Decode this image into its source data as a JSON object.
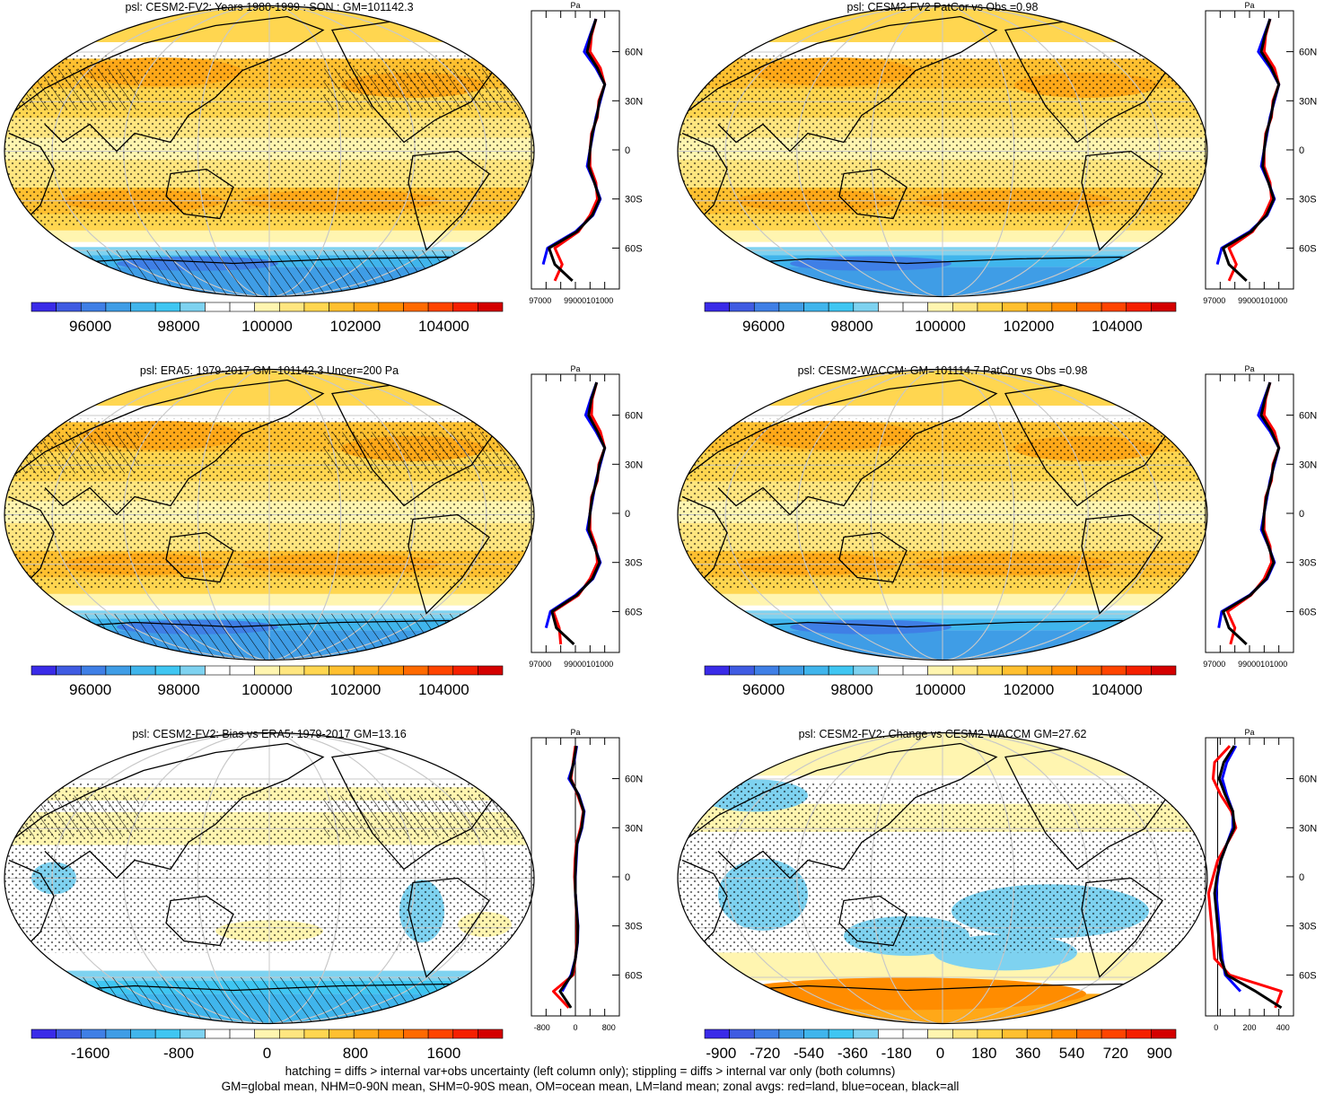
{
  "figure": {
    "footer_line1": "hatching = diffs > internal var+obs uncertainty (left column only); stippling = diffs > internal var only (both columns)",
    "footer_line2": "GM=global mean, NHM=0-90N mean, SHM=0-90S mean, OM=ocean mean, LM=land mean; zonal avgs: red=land, blue=ocean, black=all",
    "zonal_lat_labels": [
      "60N",
      "30N",
      "0",
      "30S",
      "60S"
    ],
    "zonal_units": "Pa",
    "colors": {
      "land": "#ff0000",
      "ocean": "#0000ff",
      "all": "#000000",
      "abs_palette": [
        "#3a2be8",
        "#3f5be2",
        "#3f7fe6",
        "#3f9de6",
        "#40b5ec",
        "#3fc6f2",
        "#7ed2f0",
        "#ffffff",
        "#ffffff",
        "#fff5b0",
        "#ffe680",
        "#ffd650",
        "#ffc030",
        "#ffa818",
        "#ff8c00",
        "#ff6a00",
        "#ff4400",
        "#f52000",
        "#d40000"
      ],
      "diff_palette": [
        "#3a2be8",
        "#3f5be2",
        "#3f7fe6",
        "#3f9de6",
        "#40b5ec",
        "#3fc6f2",
        "#7ed2f0",
        "#ffffff",
        "#ffffff",
        "#fff5b0",
        "#ffe680",
        "#ffd650",
        "#ffc030",
        "#ffa818",
        "#ff8c00",
        "#ff6a00",
        "#ff4400",
        "#f52000",
        "#d40000"
      ]
    }
  },
  "chart_data": [
    {
      "type": "heatmap",
      "title": "psl: CESM2-FV2: Years 1980-1999 : SON : GM=101142.3",
      "colorbar_labels": [
        "96000",
        "98000",
        "100000",
        "102000",
        "104000"
      ],
      "zonal": {
        "type": "line",
        "xticks": [
          "97000",
          "99000101000"
        ],
        "xlim": [
          97000,
          103000
        ],
        "lat": [
          -80,
          -70,
          -60,
          -50,
          -40,
          -30,
          -20,
          -10,
          0,
          10,
          20,
          30,
          40,
          50,
          60,
          70,
          80
        ],
        "series": [
          {
            "name": "land",
            "values": [
              98600,
              99100,
              98600,
              100200,
              101000,
              101500,
              101400,
              101000,
              101000,
              101100,
              101500,
              101600,
              102000,
              101700,
              101000,
              101100,
              101400
            ]
          },
          {
            "name": "ocean",
            "values": [
              null,
              97800,
              98100,
              100000,
              101200,
              101700,
              101300,
              100800,
              101000,
              101200,
              101400,
              101700,
              102000,
              101400,
              100600,
              101000,
              101400
            ]
          },
          {
            "name": "all",
            "values": [
              99800,
              98600,
              98200,
              100100,
              101150,
              101650,
              101300,
              100900,
              101000,
              101150,
              101450,
              101650,
              102000,
              101500,
              100800,
              101050,
              101400
            ]
          }
        ]
      }
    },
    {
      "type": "heatmap",
      "title": "psl: CESM2-FV2 PatCor vs Obs =0.98",
      "colorbar_labels": [
        "96000",
        "98000",
        "100000",
        "102000",
        "104000"
      ],
      "zonal": {
        "type": "line",
        "xticks": [
          "97000",
          "99000101000"
        ],
        "xlim": [
          97000,
          103000
        ],
        "lat": [
          -80,
          -70,
          -60,
          -50,
          -40,
          -30,
          -20,
          -10,
          0,
          10,
          20,
          30,
          40,
          50,
          60,
          70,
          80
        ],
        "series": [
          {
            "name": "land",
            "values": [
              98600,
              99100,
              98600,
              100200,
              101000,
              101500,
              101400,
              101000,
              101000,
              101100,
              101500,
              101600,
              102000,
              101700,
              101000,
              101100,
              101400
            ]
          },
          {
            "name": "ocean",
            "values": [
              null,
              97800,
              98100,
              100000,
              101200,
              101700,
              101300,
              100800,
              101000,
              101200,
              101400,
              101700,
              102000,
              101400,
              100600,
              101000,
              101400
            ]
          },
          {
            "name": "all",
            "values": [
              99800,
              98600,
              98200,
              100100,
              101150,
              101650,
              101300,
              100900,
              101000,
              101150,
              101450,
              101650,
              102000,
              101500,
              100800,
              101050,
              101400
            ]
          }
        ]
      }
    },
    {
      "type": "heatmap",
      "title": "psl: ERA5: 1979-2017 GM=101142.3 Uncer=200 Pa",
      "colorbar_labels": [
        "96000",
        "98000",
        "100000",
        "102000",
        "104000"
      ],
      "zonal": {
        "type": "line",
        "xticks": [
          "97000",
          "99000101000"
        ],
        "xlim": [
          97000,
          103000
        ],
        "lat": [
          -80,
          -70,
          -60,
          -50,
          -40,
          -30,
          -20,
          -10,
          0,
          10,
          20,
          30,
          40,
          50,
          60,
          70,
          80
        ],
        "series": [
          {
            "name": "land",
            "values": [
              99000,
              98900,
              98500,
              100200,
              101000,
              101500,
              101400,
              101000,
              101000,
              101100,
              101500,
              101600,
              102000,
              101700,
              101100,
              101150,
              101450
            ]
          },
          {
            "name": "ocean",
            "values": [
              null,
              98000,
              98300,
              100000,
              101200,
              101700,
              101300,
              100800,
              101000,
              101200,
              101400,
              101700,
              102000,
              101400,
              100700,
              101050,
              101450
            ]
          },
          {
            "name": "all",
            "values": [
              99900,
              98700,
              98400,
              100100,
              101150,
              101650,
              101300,
              100900,
              101000,
              101150,
              101450,
              101650,
              102000,
              101500,
              100900,
              101100,
              101450
            ]
          }
        ]
      }
    },
    {
      "type": "heatmap",
      "title": "psl: CESM2-WACCM: GM=101114.7 PatCor vs Obs =0.98",
      "colorbar_labels": [
        "96000",
        "98000",
        "100000",
        "102000",
        "104000"
      ],
      "zonal": {
        "type": "line",
        "xticks": [
          "97000",
          "99000101000"
        ],
        "xlim": [
          97000,
          103000
        ],
        "lat": [
          -80,
          -70,
          -60,
          -50,
          -40,
          -30,
          -20,
          -10,
          0,
          10,
          20,
          30,
          40,
          50,
          60,
          70,
          80
        ],
        "series": [
          {
            "name": "land",
            "values": [
              98700,
              99000,
              98500,
              100100,
              101000,
              101500,
              101400,
              101000,
              101000,
              101100,
              101500,
              101600,
              102000,
              101700,
              101000,
              101100,
              101400
            ]
          },
          {
            "name": "ocean",
            "values": [
              null,
              97900,
              98100,
              100000,
              101200,
              101700,
              101300,
              100800,
              101000,
              101200,
              101400,
              101700,
              102000,
              101400,
              100600,
              101000,
              101400
            ]
          },
          {
            "name": "all",
            "values": [
              99800,
              98600,
              98200,
              100050,
              101150,
              101650,
              101300,
              100900,
              101000,
              101150,
              101450,
              101650,
              102000,
              101500,
              100800,
              101050,
              101400
            ]
          }
        ]
      }
    },
    {
      "type": "heatmap",
      "title": "psl: CESM2-FV2: Bias vs ERA5: 1979-2017  GM=13.16",
      "colorbar_labels": [
        "-1600",
        "-800",
        "0",
        "800",
        "1600"
      ],
      "zonal": {
        "type": "line",
        "xticks": [
          "-800",
          "0",
          "800"
        ],
        "xlim": [
          -1000,
          1000
        ],
        "lat": [
          -80,
          -70,
          -60,
          -50,
          -40,
          -30,
          -20,
          -10,
          0,
          10,
          20,
          30,
          40,
          50,
          60,
          70,
          80
        ],
        "series": [
          {
            "name": "land",
            "values": [
              -150,
              -500,
              -50,
              0,
              30,
              40,
              20,
              0,
              -20,
              -10,
              20,
              120,
              180,
              50,
              -100,
              -50,
              0
            ]
          },
          {
            "name": "ocean",
            "values": [
              null,
              -300,
              -100,
              0,
              50,
              60,
              30,
              0,
              0,
              20,
              40,
              150,
              200,
              80,
              -150,
              -30,
              30
            ]
          },
          {
            "name": "all",
            "values": [
              -100,
              -350,
              -80,
              0,
              45,
              55,
              25,
              0,
              -5,
              10,
              35,
              140,
              190,
              70,
              -120,
              -40,
              20
            ]
          }
        ]
      }
    },
    {
      "type": "heatmap",
      "title": "psl: CESM2-FV2: Change vs CESM2-WACCM GM=27.62",
      "colorbar_labels": [
        "-900",
        "-720",
        "-540",
        "-360",
        "-180",
        "0",
        "180",
        "360",
        "540",
        "720",
        "900"
      ],
      "zonal": {
        "type": "line",
        "xticks": [
          "0",
          "200",
          "400"
        ],
        "xlim": [
          -80,
          500
        ],
        "lat": [
          -80,
          -70,
          -60,
          -50,
          -40,
          -30,
          -20,
          -10,
          0,
          10,
          20,
          30,
          40,
          50,
          60,
          70,
          80
        ],
        "series": [
          {
            "name": "land",
            "values": [
              380,
              420,
              80,
              -20,
              -30,
              -40,
              -50,
              -60,
              -30,
              0,
              60,
              120,
              90,
              20,
              -30,
              -20,
              80
            ]
          },
          {
            "name": "ocean",
            "values": [
              null,
              150,
              50,
              30,
              20,
              10,
              0,
              -10,
              0,
              20,
              60,
              100,
              100,
              60,
              30,
              60,
              120
            ]
          },
          {
            "name": "all",
            "values": [
              420,
              250,
              60,
              20,
              10,
              0,
              -10,
              -20,
              -5,
              20,
              60,
              110,
              100,
              50,
              10,
              40,
              110
            ]
          }
        ]
      }
    }
  ]
}
